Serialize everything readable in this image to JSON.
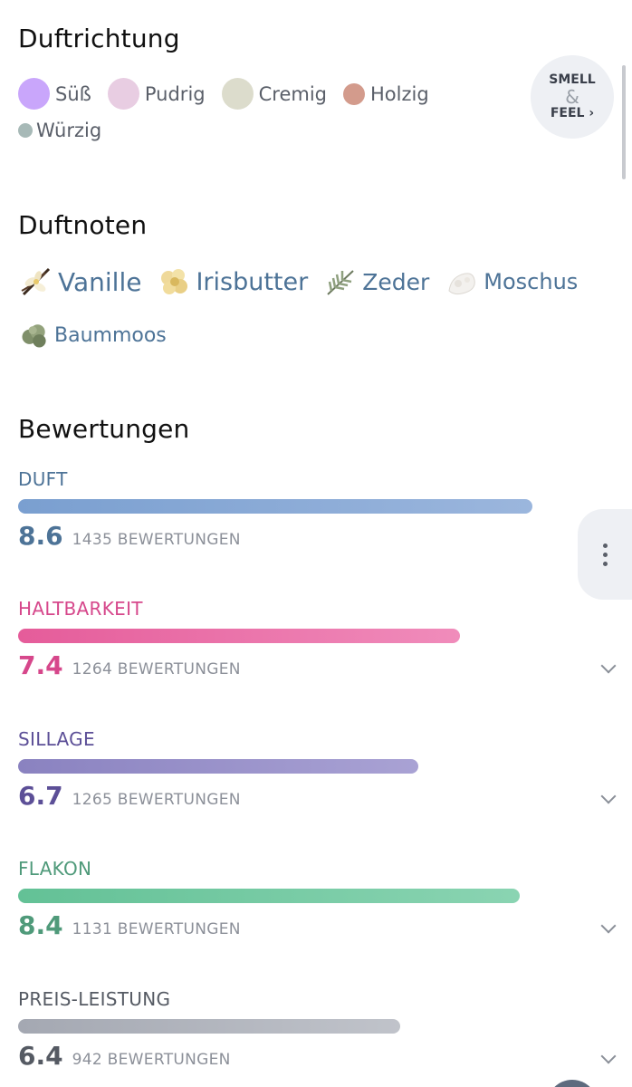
{
  "duftrichtung": {
    "title": "Duftrichtung",
    "accords": [
      {
        "label": "Süß",
        "color": "#c9a6fb"
      },
      {
        "label": "Pudrig",
        "color": "#e8cde2"
      },
      {
        "label": "Cremig",
        "color": "#dcdccc"
      },
      {
        "label": "Holzig",
        "color": "#d39b8c"
      },
      {
        "label": "Würzig",
        "color": "#a7b9b7"
      }
    ],
    "smell_feel": {
      "line1": "SMELL",
      "amp": "&",
      "line2": "FEEL ›"
    }
  },
  "duftnoten": {
    "title": "Duftnoten",
    "notes": [
      {
        "label": "Vanille",
        "icon": "vanilla-icon"
      },
      {
        "label": "Irisbutter",
        "icon": "iris-icon"
      },
      {
        "label": "Zeder",
        "icon": "cedar-icon"
      },
      {
        "label": "Moschus",
        "icon": "musk-icon"
      },
      {
        "label": "Baummoos",
        "icon": "moss-icon"
      }
    ]
  },
  "bewertungen": {
    "title": "Bewertungen",
    "items": [
      {
        "label": "DUFT",
        "score": "8.6",
        "count": "1435 BEWERTUNGEN",
        "level": 0.86,
        "color": "#4d7397",
        "bar_from": "#7a9fd0",
        "bar_to": "#9bb6dd"
      },
      {
        "label": "HALTBARKEIT",
        "score": "7.4",
        "count": "1264 BEWERTUNGEN",
        "level": 0.74,
        "color": "#d6478b",
        "bar_from": "#e55c9a",
        "bar_to": "#f08cbb"
      },
      {
        "label": "SILLAGE",
        "score": "6.7",
        "count": "1265 BEWERTUNGEN",
        "level": 0.67,
        "color": "#5c4f97",
        "bar_from": "#8a82c0",
        "bar_to": "#a9a2d4"
      },
      {
        "label": "FLAKON",
        "score": "8.4",
        "count": "1131 BEWERTUNGEN",
        "level": 0.84,
        "color": "#4f9a7a",
        "bar_from": "#63c196",
        "bar_to": "#8ad4b2"
      },
      {
        "label": "PREIS-LEISTUNG",
        "score": "6.4",
        "count": "942 BEWERTUNGEN",
        "level": 0.64,
        "color": "#555a63",
        "bar_from": "#a4a8b2",
        "bar_to": "#c0c3ca"
      }
    ]
  }
}
